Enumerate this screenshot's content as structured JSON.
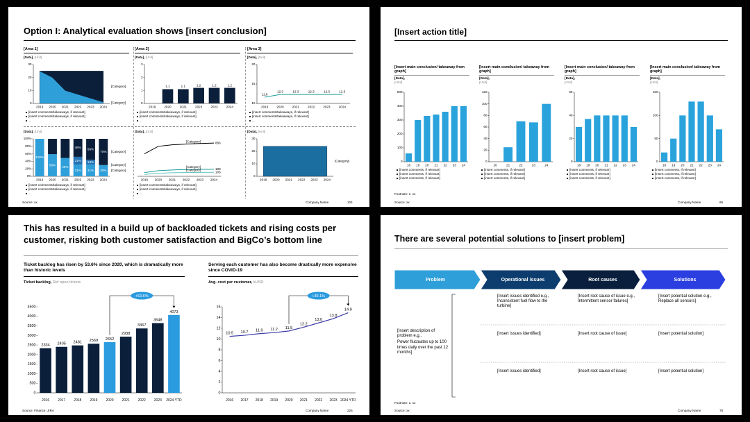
{
  "slides": [
    {
      "title": "Option I: Analytical evaluation shows [insert conclusion]",
      "panels": [
        {
          "area": "[Area 1]",
          "data_label": "[Data],",
          "unit": "[Unit]",
          "chart": {
            "type": "area",
            "categories": [
              2019,
              2020,
              2021,
              2022,
              2023,
              2024
            ],
            "ylim": [
              0,
              30
            ],
            "yticks": [
              0,
              10,
              20,
              30
            ],
            "series": [
              {
                "name": "[Category]",
                "color": "#2e9fd9",
                "values": [
                  25,
                  20,
                  10,
                  7,
                  4,
                  1
                ]
              },
              {
                "name": "[Category]",
                "color": "#0b1f3a",
                "values": [
                  0,
                  5,
                  15,
                  18,
                  21,
                  24
                ]
              }
            ]
          },
          "bullets": [
            "[insert comments/takeaways, if relevant]",
            "[insert comments/takeaways, if relevant]",
            "..."
          ]
        },
        {
          "area": "[Area 2]",
          "data_label": "[Data],",
          "unit": "[Unit]",
          "chart": {
            "type": "bar",
            "categories": [
              2019,
              2020,
              2021,
              2022,
              2023,
              2024
            ],
            "ylim": [
              0,
              3
            ],
            "yticks": [
              0,
              1,
              2,
              3
            ],
            "data_labels": true,
            "series": [
              {
                "color": "#0b1f3a",
                "values": [
                  null,
                  1.1,
                  1.1,
                  1.2,
                  1.2,
                  1.2
                ]
              }
            ]
          },
          "bullets": [
            "[insert comments/takeaways, if relevant]",
            "[insert comments/takeaways, if relevant]",
            "..."
          ]
        },
        {
          "area": "[Area 3]",
          "data_label": "[Data],",
          "unit": "[Unit]",
          "chart": {
            "type": "line",
            "categories": [
              2019,
              2020,
              2021,
              2022,
              2023,
              2024
            ],
            "ylim": [
              10,
              20
            ],
            "yticks": [
              10,
              15,
              20
            ],
            "data_labels": true,
            "series": [
              {
                "color": "#1f9d99",
                "values": [
                  11.6,
                  12.3,
                  12.3,
                  12.3,
                  12.3,
                  12.3
                ]
              }
            ]
          },
          "bullets": [
            "[insert comments/takeaways, if relevant]",
            "[insert comments/takeaways, if relevant]",
            "..."
          ]
        },
        {
          "data_label": "[Data],",
          "unit": "[Unit]",
          "chart": {
            "type": "bar",
            "stacked": true,
            "categories": [
              2019,
              2020,
              2021,
              2022,
              2023,
              2024
            ],
            "ylim": [
              0,
              100
            ],
            "data_labels": true,
            "yticks": [
              {
                "value": 0,
                "label": "0%"
              },
              {
                "value": 20,
                "label": "20%"
              },
              {
                "value": 40,
                "label": "40%"
              },
              {
                "value": 60,
                "label": "60%"
              },
              {
                "value": 80,
                "label": "80%"
              },
              {
                "value": 100,
                "label": "100%"
              }
            ],
            "series": [
              {
                "name": "[Category]",
                "color": "#2e9fd9",
                "values": [
                  100,
                  59,
                  49,
                  31,
                  31,
                  30
                ],
                "value_labels": [
                  "100%",
                  "59%",
                  "49%",
                  "31%",
                  "31%",
                  "30%"
                ]
              },
              {
                "name": "[Category]",
                "color": "#2373b5",
                "values": [
                  0,
                  0,
                  0,
                  21,
                  13,
                  0
                ],
                "value_labels": [
                  null,
                  null,
                  null,
                  "21%",
                  "13%",
                  null
                ]
              },
              {
                "name": "[Category]",
                "color": "#0b1f3a",
                "values": [
                  0,
                  41,
                  51,
                  48,
                  56,
                  70
                ],
                "value_labels": [
                  null,
                  null,
                  null,
                  "48%",
                  "56%",
                  "70%"
                ]
              }
            ]
          },
          "bullets": [
            "[insert comments/takeaways, if relevant]",
            "[insert comments/takeaways, if relevant]",
            "..."
          ]
        },
        {
          "data_label": "[Data],",
          "unit": "[Unit]",
          "chart": {
            "type": "line",
            "categories": [
              2019,
              2020,
              2021,
              2022,
              2023,
              2024
            ],
            "ylim": [
              0,
              1000
            ],
            "end_labels": true,
            "series": [
              {
                "name": "[Category]",
                "color": "#000000",
                "values": [
                  600,
                  800,
                  840,
                  860,
                  875,
                  886
                ]
              },
              {
                "name": "[Category]",
                "color": "#1f9d99",
                "values": [
                  100,
                  150,
                  170,
                  180,
                  185,
                  188
                ]
              },
              {
                "name": "[Category]",
                "color": "#5cc5c0",
                "values": [
                  50,
                  80,
                  95,
                  100,
                  104,
                  106
                ]
              }
            ]
          },
          "bullets": [
            "[insert comments/takeaways, if relevant]",
            "[insert comments/takeaways, if relevant]",
            "..."
          ]
        },
        {
          "data_label": "[Data],",
          "unit": "[Unit]",
          "chart": {
            "type": "area",
            "categories": [
              2019,
              2020,
              2021,
              2022,
              2023,
              2024
            ],
            "ylim": [
              0,
              30
            ],
            "yticks": [
              0,
              10,
              20,
              30
            ],
            "series": [
              {
                "name": "[Category]",
                "color": "#1b6fa0",
                "values": [
                  24,
                  24,
                  24,
                  24,
                  24,
                  24
                ]
              }
            ]
          }
        }
      ],
      "footer": {
        "source": "Source: xx",
        "company": "Company Name",
        "page": 104
      }
    },
    {
      "title": "[Insert action title]",
      "panels": [
        {
          "heading": "[Insert main conclusion/ takeaway from graph]",
          "data_label": "[Data],",
          "unit": "[Unit]",
          "chart": {
            "type": "bar",
            "categories": [
              18,
              19,
              20,
              21,
              22,
              23,
              24
            ],
            "ylim": [
              0,
              500
            ],
            "yticks": [
              0,
              100,
              200,
              300,
              400,
              500
            ],
            "series": [
              {
                "color": "#2aa3dc",
                "values": [
                  60,
                  300,
                  330,
                  340,
                  360,
                  400,
                  400
                ]
              }
            ]
          },
          "bullets": [
            "[insert comments, if relevant]",
            "[insert comments, if relevant]",
            "[insert comments, if relevant]"
          ]
        },
        {
          "heading": "[Insert main conclusion/ takeaway from graph]",
          "data_label": "[Data],",
          "unit": "[Unit]",
          "chart": {
            "type": "bar",
            "categories": [
              20,
              21,
              22,
              23,
              24
            ],
            "ylim": [
              0,
              120
            ],
            "yticks": [
              0,
              20,
              40,
              60,
              80,
              100,
              120
            ],
            "series": [
              {
                "color": "#2aa3dc",
                "values": [
                  null,
                  25,
                  70,
                  68,
                  100
                ]
              }
            ]
          },
          "bullets": [
            "[insert comments, if relevant]",
            "[insert comments, if relevant]",
            "[insert comments, if relevant]"
          ]
        },
        {
          "heading": "[Insert main conclusion/ takeaway from graph]",
          "data_label": "[Data],",
          "unit": "[Unit]",
          "chart": {
            "type": "bar",
            "categories": [
              18,
              19,
              20,
              21,
              22,
              23,
              24
            ],
            "ylim": [
              0,
              60
            ],
            "yticks": [
              0,
              20,
              40,
              60
            ],
            "series": [
              {
                "color": "#2aa3dc",
                "values": [
                  30,
                  37,
                  40,
                  40,
                  40,
                  40,
                  30
                ]
              }
            ]
          },
          "bullets": [
            "[insert comments, if relevant]",
            "[insert comments, if relevant]",
            "[insert comments, if relevant]"
          ]
        },
        {
          "heading": "[Insert main conclusion/ takeaway from graph]",
          "data_label": "[Data],",
          "unit": "[Unit]",
          "chart": {
            "type": "bar",
            "categories": [
              18,
              19,
              20,
              21,
              22,
              23,
              24
            ],
            "ylim": [
              0,
              150
            ],
            "yticks": [
              0,
              50,
              100,
              150
            ],
            "series": [
              {
                "color": "#2aa3dc",
                "values": [
                  20,
                  50,
                  100,
                  130,
                  130,
                  100,
                  70
                ]
              }
            ]
          },
          "bullets": [
            "[insert comments, if relevant]",
            "[insert comments, if relevant]",
            "[insert comments, if relevant]"
          ]
        }
      ],
      "footnote": "Footnote: 1. xx",
      "footer": {
        "source": "Source: xx",
        "company": "Company Name",
        "page": 66
      }
    },
    {
      "title": "This has resulted in a build up of backloaded tickets and rising costs per customer, risking both customer satisfaction and BigCo’s bottom line",
      "left": {
        "heading": "Ticket backlog has risen by 53.6% since 2020, which is dramatically more than historic levels",
        "data_label": "Ticket backlog,",
        "unit": "Ref open tickets",
        "badge": "+53.6%",
        "chart": {
          "type": "bar",
          "categories": [
            2016,
            2017,
            2018,
            2019,
            2020,
            2021,
            2022,
            2023,
            "2024 YTD"
          ],
          "ylim": [
            0,
            4500
          ],
          "yticks": [
            0,
            500,
            1000,
            1500,
            2000,
            2500,
            3000,
            3500,
            4000,
            4500
          ],
          "data_labels": true,
          "series": [
            {
              "values": [
                2334,
                2405,
                2481,
                2569,
                2652,
                2938,
                3367,
                3648,
                4073
              ],
              "colors": [
                "#0b1f3a",
                "#0b1f3a",
                "#0b1f3a",
                "#0b1f3a",
                "#2a9bdf",
                "#0b1f3a",
                "#0b1f3a",
                "#0b1f3a",
                "#2a9bdf"
              ]
            }
          ]
        }
      },
      "right": {
        "heading": "Serving each customer has also become drastically more expensive since COVID-19",
        "data_label": "Avg. cost per customer,",
        "unit": "kUSD",
        "badge": "+30.1%",
        "chart": {
          "type": "line",
          "categories": [
            2016,
            2017,
            2018,
            2019,
            2020,
            2021,
            2022,
            2023,
            "2024 YTD"
          ],
          "ylim": [
            0,
            16
          ],
          "yticks": [
            0,
            2,
            4,
            6,
            8,
            10,
            12,
            14,
            16
          ],
          "data_labels": true,
          "series": [
            {
              "color": "#3b3ba8",
              "values": [
                10.5,
                10.7,
                11.0,
                11.2,
                11.5,
                12.2,
                13.0,
                13.8,
                14.9
              ],
              "value_labels": [
                "10.5",
                "10.7",
                "11.0",
                "11.2",
                "11.5",
                "12.2",
                "13.0",
                "13.8",
                "14.9"
              ]
            }
          ]
        }
      },
      "footer": {
        "source": "Source: Finance; JIRA",
        "company": "Company Name",
        "page": 225
      }
    },
    {
      "title": "There are several potential solutions to [insert problem]",
      "stages": [
        "Problem",
        "Operational issues",
        "Root causes",
        "Solutions"
      ],
      "problem": [
        "[Insert description of problem e.g.,",
        "Power fluctuates up to 100 times daily over the past 12 months]"
      ],
      "rows": [
        [
          "[Insert issues identified e.g., Inconsistent fuel flow to the turbine]",
          "[Insert root cause of issue e.g., Intermittent sensor failures]",
          "[Insert potential solution e.g., Replace all sensors]"
        ],
        [
          "[Insert issues identified]",
          "[Insert root cause of issue]",
          "[Insert potential solution]"
        ],
        [
          "[Insert issues identified]",
          "[Insert root cause of issue]",
          "[Insert potential solution]"
        ]
      ],
      "footnote": "Footnote: 1. xx",
      "footer": {
        "source": "Source: xx",
        "company": "Company Name",
        "page": 78
      }
    }
  ]
}
